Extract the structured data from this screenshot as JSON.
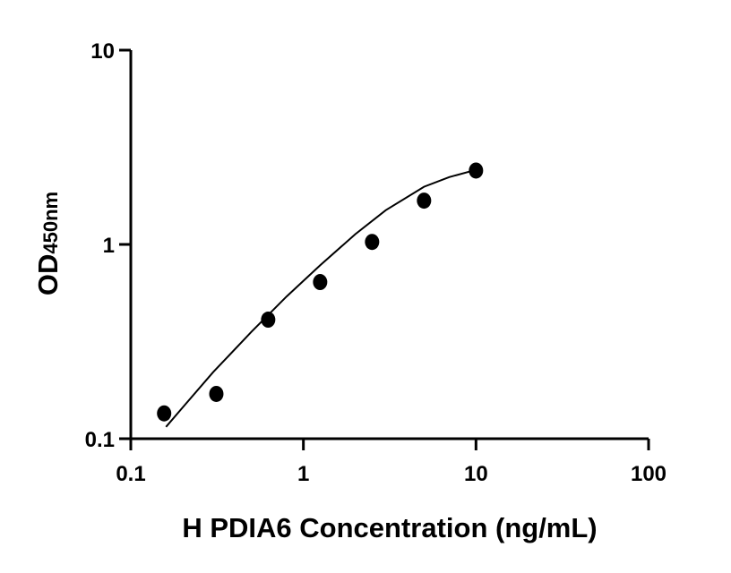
{
  "chart_data": {
    "type": "scatter",
    "title": "",
    "xlabel": "H PDIA6 Concentration (ng/mL)",
    "ylabel": {
      "main": "OD",
      "sub": "450nm"
    },
    "x_scale": "log",
    "y_scale": "log",
    "xlim": [
      0.1,
      100
    ],
    "ylim": [
      0.1,
      10
    ],
    "x_ticks": [
      "0.1",
      "1",
      "10",
      "100"
    ],
    "y_ticks": [
      "0.1",
      "1",
      "10"
    ],
    "grid": false,
    "colors": {
      "points": "#000000",
      "curve": "#000000",
      "axes": "#000000"
    },
    "series": [
      {
        "x": [
          0.156,
          0.313,
          0.625,
          1.25,
          2.5,
          5,
          10
        ],
        "y": [
          0.135,
          0.17,
          0.41,
          0.64,
          1.03,
          1.68,
          2.4
        ]
      }
    ],
    "fit_curve": {
      "x": [
        0.16,
        0.2,
        0.3,
        0.5,
        0.8,
        1.25,
        2,
        3,
        5,
        7,
        10
      ],
      "y": [
        0.115,
        0.145,
        0.22,
        0.355,
        0.54,
        0.78,
        1.13,
        1.5,
        1.98,
        2.22,
        2.42
      ]
    }
  }
}
